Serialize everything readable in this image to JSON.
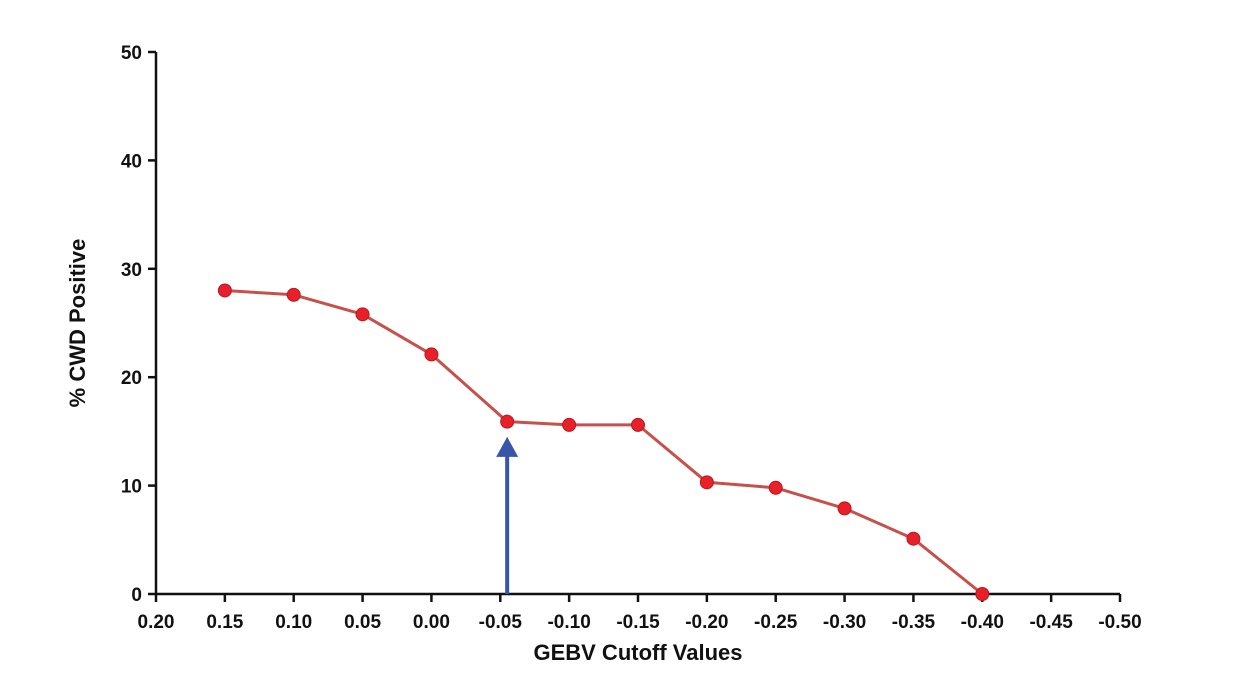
{
  "chart_data": {
    "type": "line",
    "title": "",
    "xlabel": "GEBV Cutoff Values",
    "ylabel": "% CWD Positive",
    "x_reversed": true,
    "xlim": [
      0.2,
      -0.5
    ],
    "ylim": [
      0,
      50
    ],
    "x_ticks": [
      "0.20",
      "0.15",
      "0.10",
      "0.05",
      "0.00",
      "-0.05",
      "-0.10",
      "-0.15",
      "-0.20",
      "-0.25",
      "-0.30",
      "-0.35",
      "-0.40",
      "-0.45",
      "-0.50"
    ],
    "y_ticks": [
      "0",
      "10",
      "20",
      "30",
      "40",
      "50"
    ],
    "grid": false,
    "series": [
      {
        "x": [
          0.15,
          0.1,
          0.05,
          0.0,
          -0.055,
          -0.1,
          -0.15,
          -0.2,
          -0.25,
          -0.3,
          -0.35,
          -0.4
        ],
        "y": [
          28.0,
          27.6,
          25.8,
          22.1,
          15.9,
          15.6,
          15.6,
          10.3,
          9.8,
          7.9,
          5.1,
          0.0
        ]
      }
    ],
    "annotations": [
      {
        "type": "arrow",
        "x": -0.055,
        "y_from": 0,
        "y_to": 14.5,
        "color": "#3a55a8"
      }
    ],
    "colors": {
      "line": "#c8504a",
      "marker": "#e8202a",
      "axis": "#111111",
      "arrow": "#3a55a8"
    }
  }
}
